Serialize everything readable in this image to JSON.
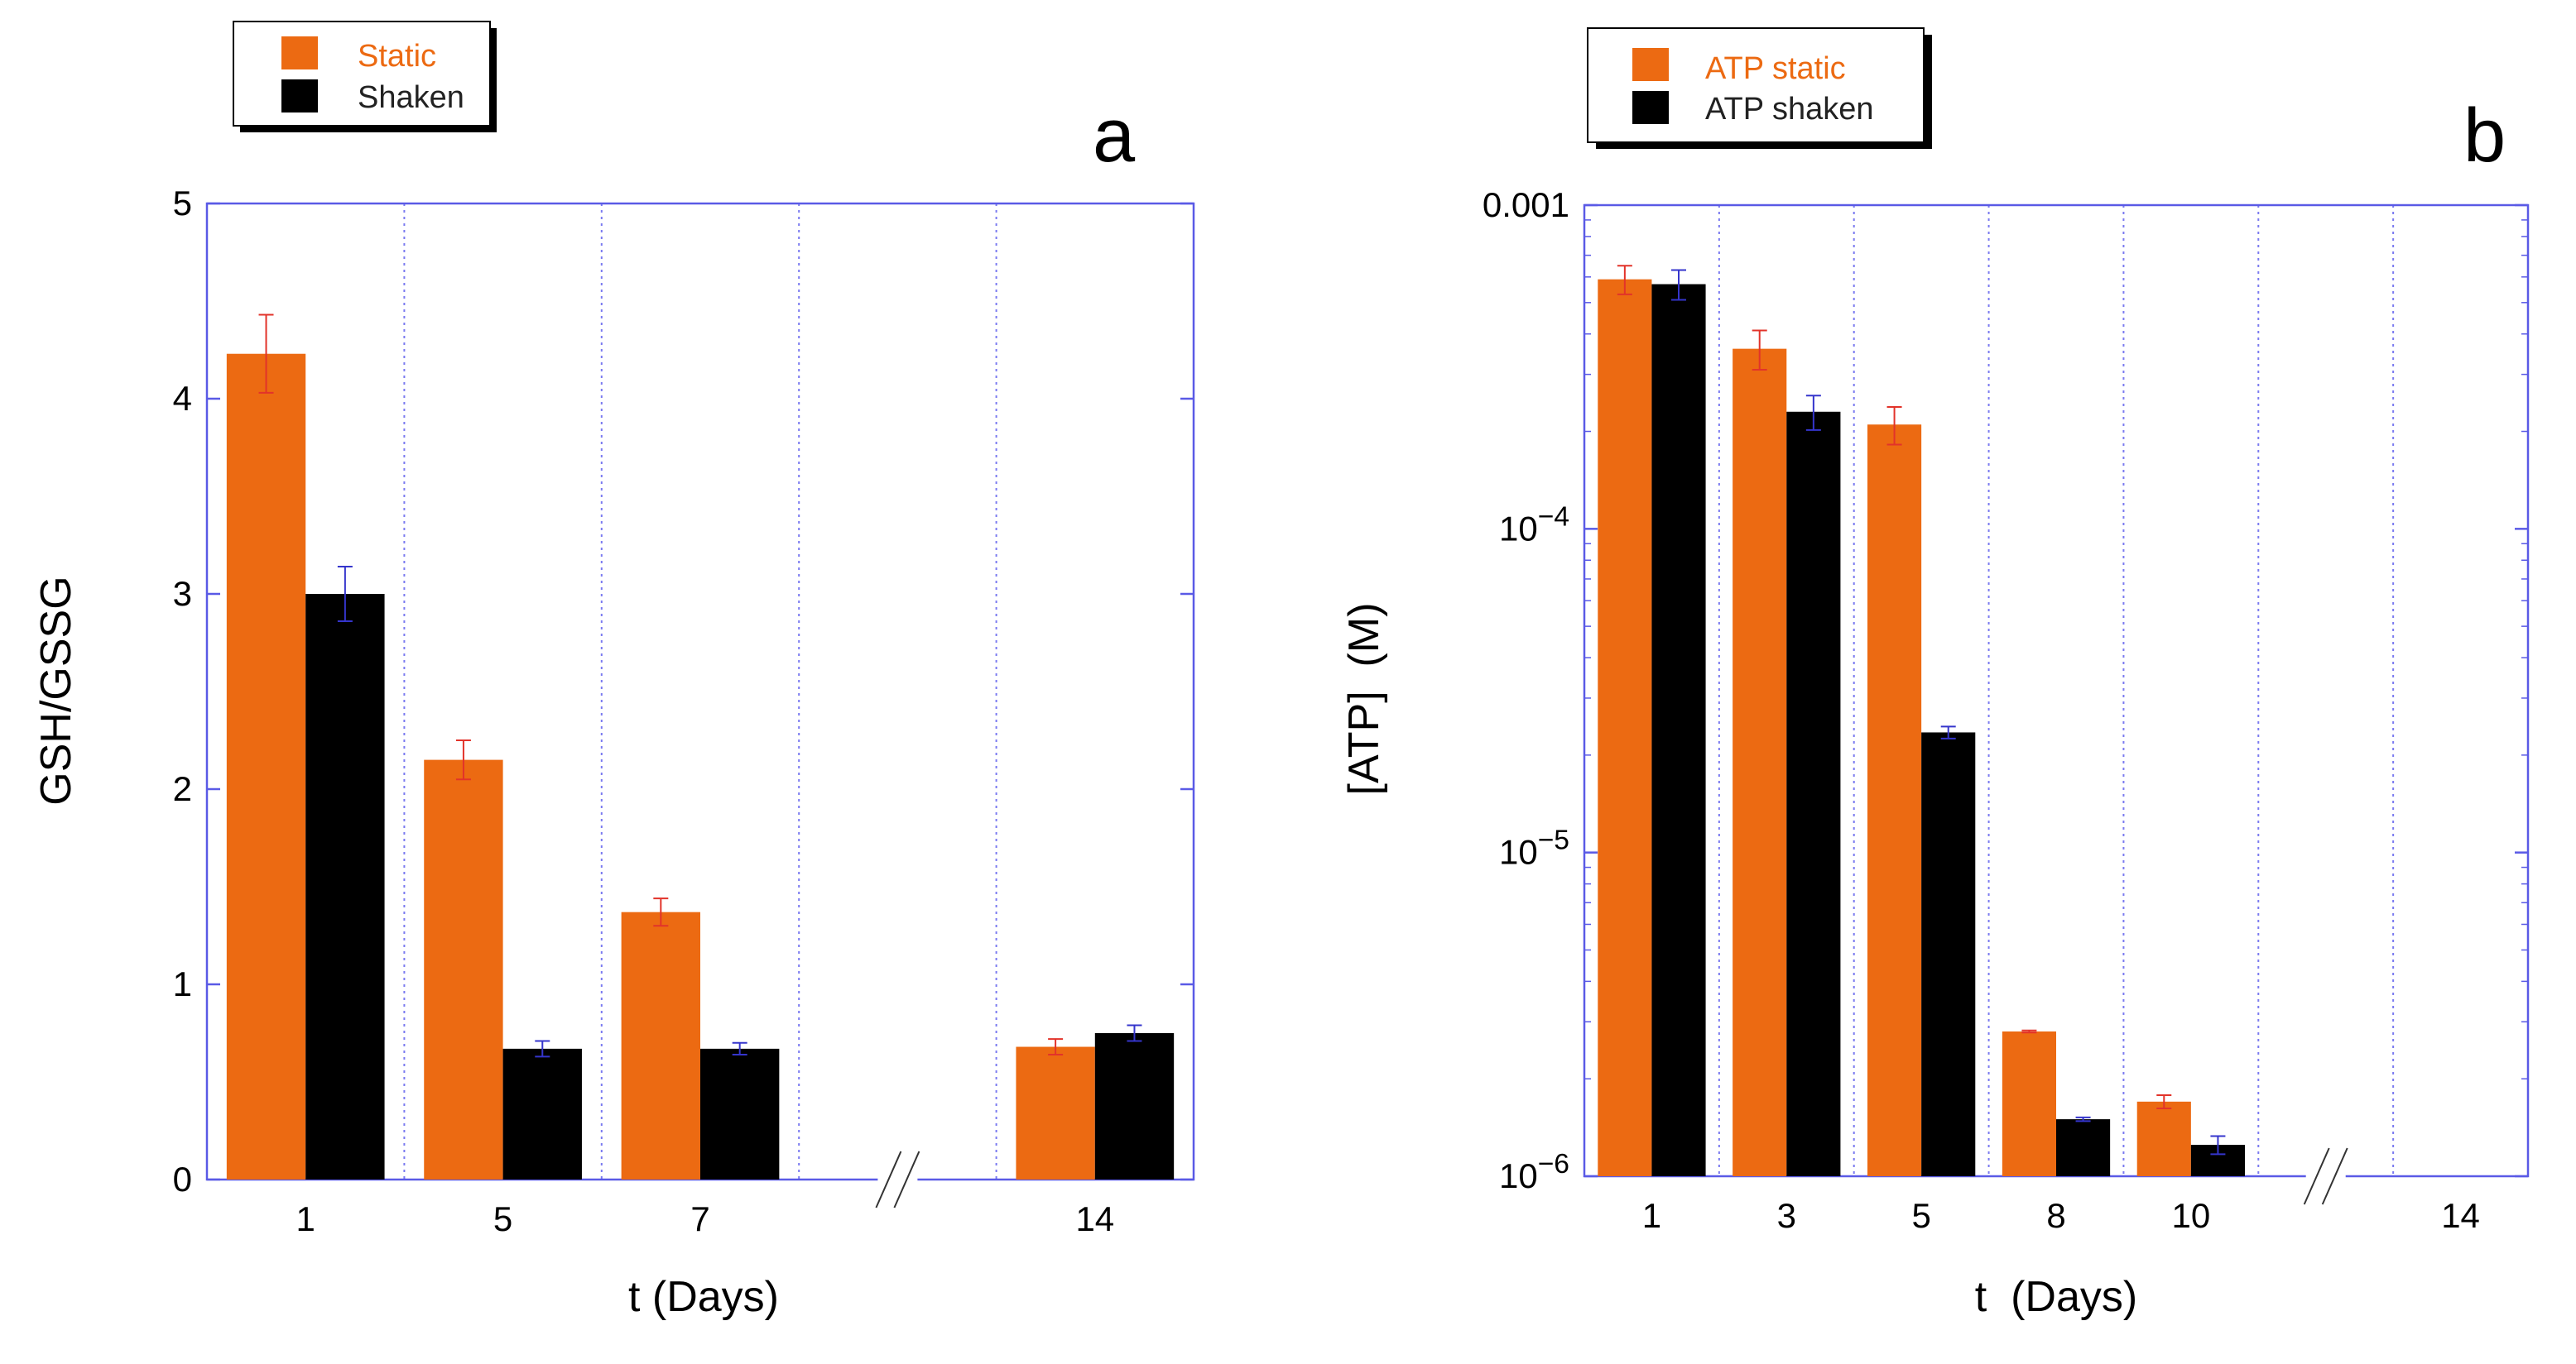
{
  "colors": {
    "static": "#ec6a12",
    "shaken": "#000000",
    "axis": "#5a5ae6",
    "grid": "#7a7af0",
    "err_static": "#e2332a",
    "err_shaken": "#3535cc"
  },
  "chart_data": [
    {
      "type": "bar",
      "panel_label": "a",
      "xlabel": "t (Days)",
      "ylabel": "GSH/GSSG",
      "yscale": "linear",
      "ylim": [
        0,
        5
      ],
      "yticks": [
        0,
        1,
        2,
        3,
        4,
        5
      ],
      "ytick_labels": [
        "0",
        "1",
        "2",
        "3",
        "4",
        "5"
      ],
      "categories": [
        "1",
        "5",
        "7",
        "",
        "14"
      ],
      "axis_break_between": [
        "7",
        "14"
      ],
      "grid": "vertical dotted lines between categories",
      "legend": {
        "placement": "top-left, outside plot",
        "entries": [
          "Static",
          "Shaken"
        ]
      },
      "series": [
        {
          "name": "Static",
          "values": [
            4.23,
            2.15,
            1.37,
            null,
            0.68
          ],
          "errors": [
            0.2,
            0.1,
            0.07,
            null,
            0.04
          ]
        },
        {
          "name": "Shaken",
          "values": [
            3.0,
            0.67,
            0.67,
            null,
            0.75
          ],
          "errors": [
            0.14,
            0.04,
            0.03,
            null,
            0.04
          ]
        }
      ]
    },
    {
      "type": "bar",
      "panel_label": "b",
      "xlabel": "t  (Days)",
      "ylabel": "[ATP]  (M)",
      "yscale": "log",
      "ylim": [
        1e-06,
        0.001
      ],
      "yticks": [
        1e-06,
        1e-05,
        0.0001,
        0.001
      ],
      "ytick_labels": [
        "10−6",
        "10−5",
        "10−4",
        "0.001"
      ],
      "categories": [
        "1",
        "3",
        "5",
        "8",
        "10",
        "",
        "14"
      ],
      "axis_break_between": [
        "10",
        "14"
      ],
      "grid": "vertical dotted lines between categories",
      "legend": {
        "placement": "top-left, outside plot",
        "entries": [
          "ATP static",
          "ATP shaken"
        ]
      },
      "series": [
        {
          "name": "ATP static",
          "values": [
            0.00059,
            0.00036,
            0.00021,
            2.8e-06,
            1.7e-06,
            null,
            null
          ],
          "errors": [
            6e-05,
            5e-05,
            2.8e-05,
            2e-08,
            8e-08,
            null,
            null
          ]
        },
        {
          "name": "ATP shaken",
          "values": [
            0.00057,
            0.00023,
            2.35e-05,
            1.5e-06,
            1.25e-06,
            null,
            null
          ],
          "errors": [
            6e-05,
            2.8e-05,
            1e-06,
            2e-08,
            8e-08,
            null,
            null
          ]
        }
      ]
    }
  ]
}
